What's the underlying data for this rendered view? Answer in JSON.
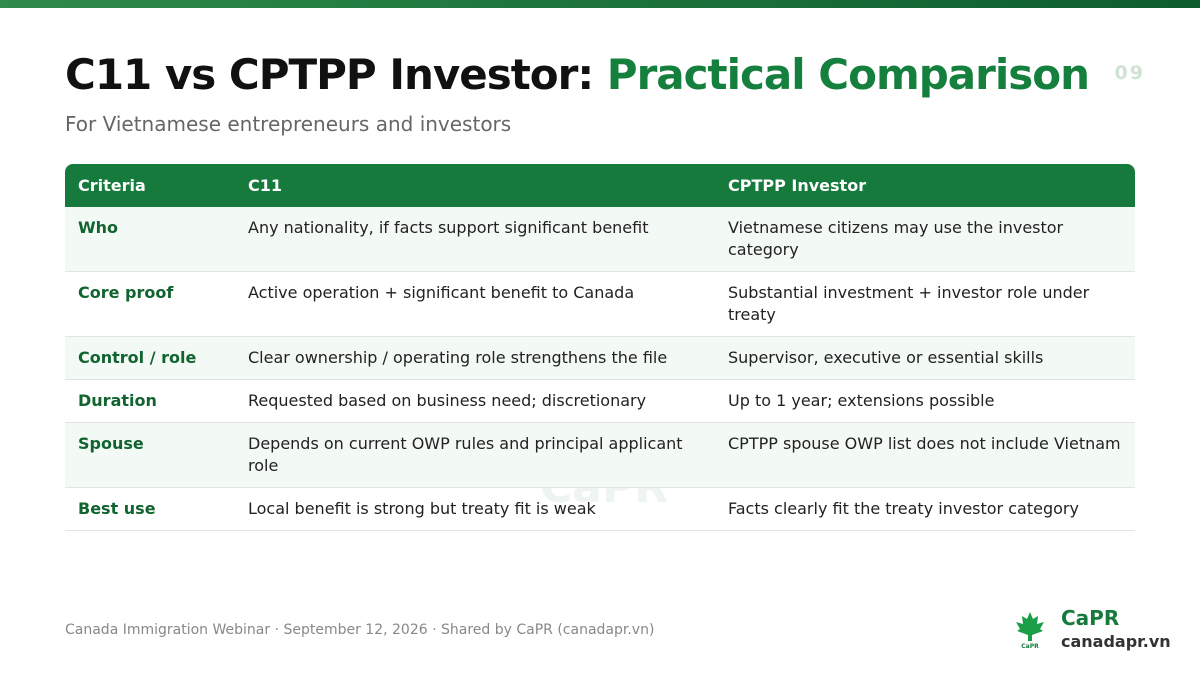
{
  "header": {
    "title_main": "C11 vs CPTPP Investor:",
    "title_accent": "Practical Comparison",
    "subtitle": "For Vietnamese entrepreneurs and investors",
    "page_number": "09"
  },
  "table": {
    "columns": [
      "Criteria",
      "C11",
      "CPTPP Investor"
    ],
    "rows": [
      [
        "Who",
        "Any nationality, if facts support significant benefit",
        "Vietnamese citizens may use the investor category"
      ],
      [
        "Core proof",
        "Active operation + significant benefit to Canada",
        "Substantial investment + investor role under treaty"
      ],
      [
        "Control / role",
        "Clear ownership / operating role strengthens the file",
        "Supervisor, executive or essential skills"
      ],
      [
        "Duration",
        "Requested based on business need; discretionary",
        "Up to 1 year; extensions possible"
      ],
      [
        "Spouse",
        "Depends on current OWP rules and principal applicant role",
        "CPTPP spouse OWP list does not include Vietnam"
      ],
      [
        "Best use",
        "Local benefit is strong but treaty fit is weak",
        "Facts clearly fit the treaty investor category"
      ]
    ]
  },
  "watermark": "CaPR",
  "footer": {
    "note": "Canada Immigration Webinar · September 12, 2026 · Shared by CaPR (canadapr.vn)",
    "brand": "CaPR",
    "logo_caption": "CaPR",
    "website": "canadapr.vn"
  }
}
